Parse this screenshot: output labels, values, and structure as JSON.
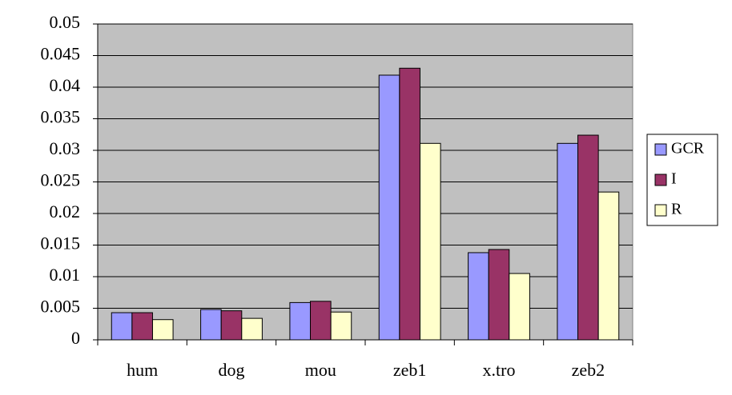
{
  "chart_data": {
    "type": "bar",
    "categories": [
      "hum",
      "dog",
      "mou",
      "zeb1",
      "x.tro",
      "zeb2"
    ],
    "series": [
      {
        "name": "GCR",
        "color": "#9999ff",
        "values": [
          0.0043,
          0.0048,
          0.0059,
          0.0419,
          0.0138,
          0.0311
        ]
      },
      {
        "name": "I",
        "color": "#993366",
        "values": [
          0.0043,
          0.0046,
          0.0061,
          0.043,
          0.0143,
          0.0324
        ]
      },
      {
        "name": "R",
        "color": "#ffffcc",
        "values": [
          0.0032,
          0.0034,
          0.0044,
          0.0311,
          0.0105,
          0.0234
        ]
      }
    ],
    "ylim": [
      0,
      0.05
    ],
    "yticks": [
      0,
      0.005,
      0.01,
      0.015,
      0.02,
      0.025,
      0.03,
      0.035,
      0.04,
      0.045,
      0.05
    ],
    "grid": true,
    "legend": "right",
    "plot_background": "#c0c0c0"
  }
}
